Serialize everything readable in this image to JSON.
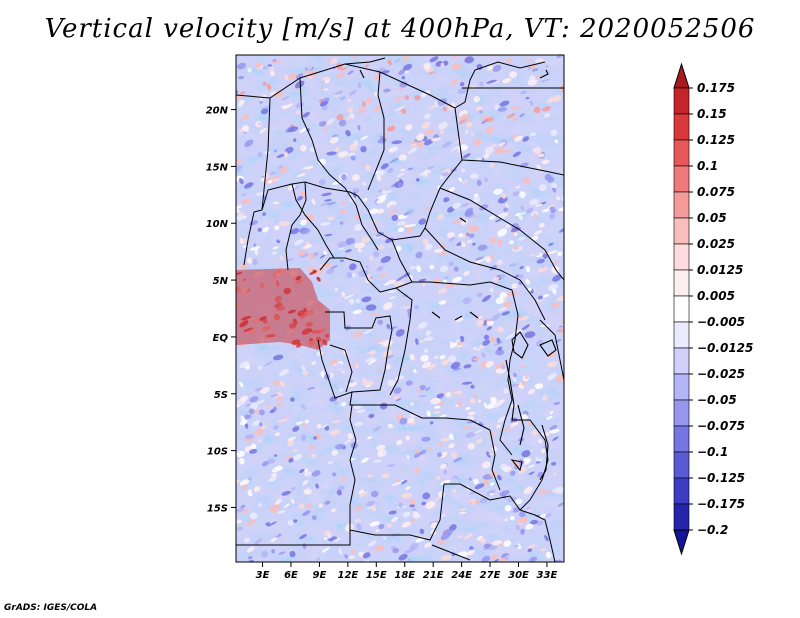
{
  "chart_data": {
    "type": "heatmap",
    "title": "Vertical velocity [m/s] at 400hPa, VT: 2020052506",
    "variable": "Vertical velocity",
    "units": "m/s",
    "level": "400hPa",
    "valid_time": "2020052506",
    "x_ticks": [
      {
        "label": "3E",
        "lon": 3
      },
      {
        "label": "6E",
        "lon": 6
      },
      {
        "label": "9E",
        "lon": 9
      },
      {
        "label": "12E",
        "lon": 12
      },
      {
        "label": "15E",
        "lon": 15
      },
      {
        "label": "18E",
        "lon": 18
      },
      {
        "label": "21E",
        "lon": 21
      },
      {
        "label": "24E",
        "lon": 24
      },
      {
        "label": "27E",
        "lon": 27
      },
      {
        "label": "30E",
        "lon": 30
      },
      {
        "label": "33E",
        "lon": 33
      }
    ],
    "y_ticks": [
      {
        "label": "20N",
        "lat": 20
      },
      {
        "label": "15N",
        "lat": 15
      },
      {
        "label": "10N",
        "lat": 10
      },
      {
        "label": "5N",
        "lat": 5
      },
      {
        "label": "EQ",
        "lat": 0
      },
      {
        "label": "5S",
        "lat": -5
      },
      {
        "label": "10S",
        "lat": -10
      },
      {
        "label": "15S",
        "lat": -15
      }
    ],
    "lon_range": [
      0.2,
      34.8
    ],
    "lat_range": [
      -19.8,
      24.8
    ],
    "colorbar": {
      "labels": [
        "0.175",
        "0.15",
        "0.125",
        "0.1",
        "0.075",
        "0.05",
        "0.025",
        "0.0125",
        "0.005",
        "−0.005",
        "−0.0125",
        "−0.025",
        "−0.05",
        "−0.075",
        "−0.1",
        "−0.125",
        "−0.175",
        "−0.2"
      ],
      "colors": [
        "#a8191e",
        "#c4242a",
        "#d9393a",
        "#e8585a",
        "#f07a7a",
        "#f59c9b",
        "#f9bdbc",
        "#fcdcdc",
        "#fff0f0",
        "#ffffff",
        "#ebebff",
        "#d0d0fb",
        "#b4b4f6",
        "#9696ee",
        "#7676e2",
        "#5a5ad5",
        "#3c3cc4",
        "#2424ad",
        "#14149a"
      ]
    }
  },
  "footer": {
    "credit": "GrADS: IGES/COLA"
  }
}
